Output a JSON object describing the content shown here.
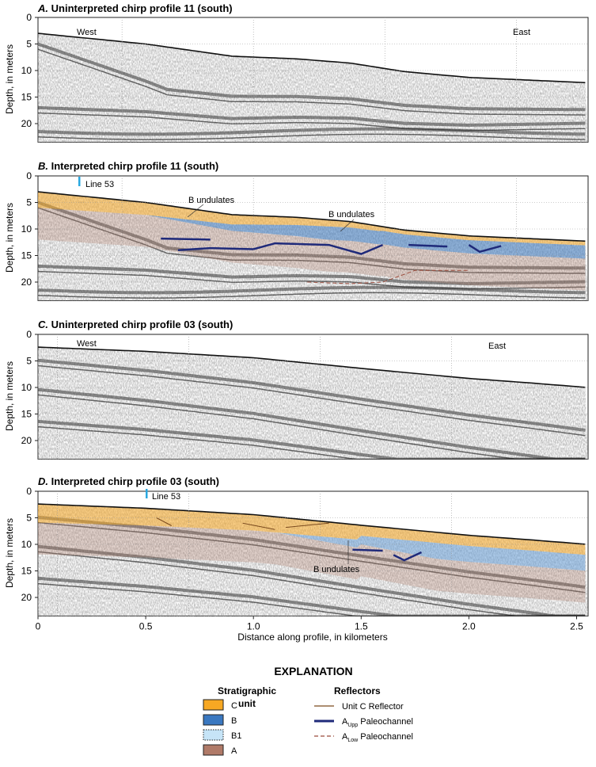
{
  "panels": [
    {
      "letter": "A.",
      "title": "Uninterpreted chirp profile 11 (south)",
      "west": "West",
      "east": "East"
    },
    {
      "letter": "B.",
      "title": "Interpreted chirp profile 11 (south)",
      "line_label": "Line 53",
      "annotations": [
        "B undulates",
        "B undulates"
      ]
    },
    {
      "letter": "C.",
      "title": "Uninterpreted chirp profile 03 (south)",
      "west": "West",
      "east": "East"
    },
    {
      "letter": "D.",
      "title": "Interpreted chirp profile 03 (south)",
      "line_label": "Line 53",
      "annotations": [
        "B undulates"
      ]
    }
  ],
  "axes": {
    "ylabel": "Depth, in meters",
    "yticks": [
      "0",
      "5",
      "10",
      "15",
      "20"
    ],
    "xlabel": "Distance along profile, in kilometers",
    "xticks": [
      "0",
      "0.5",
      "1.0",
      "1.5",
      "2.0",
      "2.5"
    ]
  },
  "explanation": {
    "title": "EXPLANATION",
    "strat_title_1": "Stratigraphic",
    "strat_title_2": "unit",
    "units": [
      {
        "label": "C",
        "color": "#f7a823"
      },
      {
        "label": "B",
        "color": "#3a78c0"
      },
      {
        "label": "B1",
        "color": "#c6e4f7"
      },
      {
        "label": "A",
        "color": "#b07a68"
      }
    ],
    "reflectors_title": "Reflectors",
    "reflectors": [
      {
        "label": "Unit C Reflector",
        "color": "#7a4a1e"
      },
      {
        "label_main": "A",
        "label_sub": "Upp",
        "label_rest": "Paleochannel",
        "color": "#1f2a7a"
      },
      {
        "label_main": "A",
        "label_sub": "Low",
        "label_rest": "Paleochannel",
        "color": "#9a4a3a"
      }
    ]
  }
}
